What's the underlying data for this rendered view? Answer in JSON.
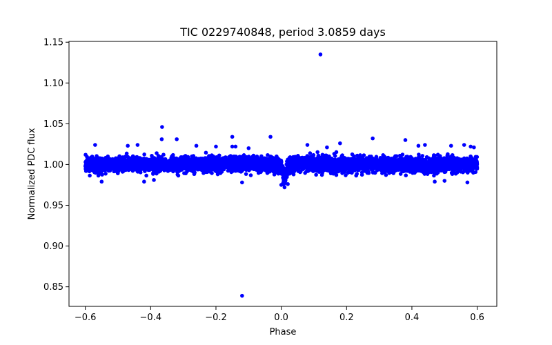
{
  "chart_data": {
    "type": "scatter",
    "title": "TIC 0229740848, period 3.0859 days",
    "xlabel": "Phase",
    "ylabel": "Normalized PDC flux",
    "xlim": [
      -0.65,
      0.66
    ],
    "ylim": [
      0.826,
      1.151
    ],
    "xticks": [
      -0.6,
      -0.4,
      -0.2,
      0.0,
      0.2,
      0.4,
      0.6
    ],
    "xtick_labels": [
      "−0.6",
      "−0.4",
      "−0.2",
      "0.0",
      "0.2",
      "0.4",
      "0.6"
    ],
    "yticks": [
      0.85,
      0.9,
      0.95,
      1.0,
      1.05,
      1.1,
      1.15
    ],
    "ytick_labels": [
      "0.85",
      "0.90",
      "0.95",
      "1.00",
      "1.05",
      "1.10",
      "1.15"
    ],
    "marker_color": "#0000ff",
    "band": {
      "x_range": [
        -0.6,
        0.6
      ],
      "center": 1.0,
      "core_half_width": 0.008,
      "transit_center": 0.01,
      "transit_depth": 0.018,
      "transit_half_width": 0.013
    },
    "outliers": [
      {
        "x": 0.12,
        "y": 1.135
      },
      {
        "x": -0.12,
        "y": 0.839
      },
      {
        "x": -0.365,
        "y": 1.046
      },
      {
        "x": -0.366,
        "y": 1.031
      },
      {
        "x": -0.32,
        "y": 1.031
      },
      {
        "x": -0.15,
        "y": 1.034
      },
      {
        "x": -0.033,
        "y": 1.034
      },
      {
        "x": 0.28,
        "y": 1.032
      },
      {
        "x": 0.38,
        "y": 1.03
      },
      {
        "x": -0.57,
        "y": 1.024
      },
      {
        "x": -0.47,
        "y": 1.023
      },
      {
        "x": -0.44,
        "y": 1.024
      },
      {
        "x": -0.26,
        "y": 1.023
      },
      {
        "x": -0.2,
        "y": 1.022
      },
      {
        "x": -0.15,
        "y": 1.022
      },
      {
        "x": -0.14,
        "y": 1.022
      },
      {
        "x": -0.1,
        "y": 1.02
      },
      {
        "x": 0.08,
        "y": 1.024
      },
      {
        "x": 0.14,
        "y": 1.021
      },
      {
        "x": 0.18,
        "y": 1.026
      },
      {
        "x": 0.42,
        "y": 1.023
      },
      {
        "x": 0.44,
        "y": 1.024
      },
      {
        "x": 0.52,
        "y": 1.023
      },
      {
        "x": 0.56,
        "y": 1.024
      },
      {
        "x": 0.58,
        "y": 1.022
      },
      {
        "x": 0.59,
        "y": 1.021
      },
      {
        "x": -0.55,
        "y": 0.979
      },
      {
        "x": -0.42,
        "y": 0.979
      },
      {
        "x": -0.39,
        "y": 0.981
      },
      {
        "x": -0.12,
        "y": 0.978
      },
      {
        "x": 0.01,
        "y": 0.972
      },
      {
        "x": 0.0,
        "y": 0.975
      },
      {
        "x": 0.02,
        "y": 0.976
      },
      {
        "x": 0.47,
        "y": 0.979
      },
      {
        "x": 0.5,
        "y": 0.98
      },
      {
        "x": 0.57,
        "y": 0.978
      }
    ]
  }
}
